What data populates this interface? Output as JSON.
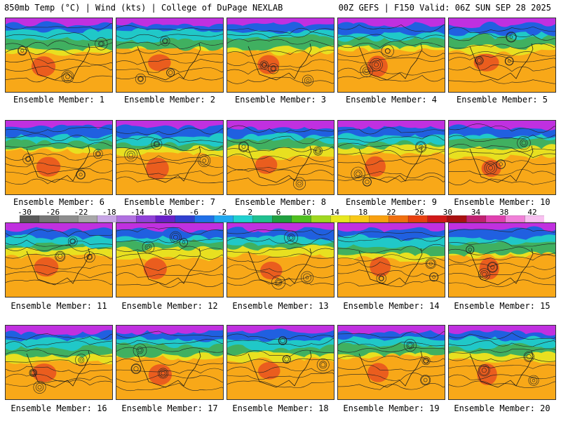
{
  "header": {
    "left": "850mb Temp (°C) | Wind (kts) | College of DuPage NEXLAB",
    "right": "00Z GEFS | F150 Valid: 06Z SUN SEP 28 2025"
  },
  "panels": [
    {
      "label": "Ensemble Member: 1"
    },
    {
      "label": "Ensemble Member: 2"
    },
    {
      "label": "Ensemble Member: 3"
    },
    {
      "label": "Ensemble Member: 4"
    },
    {
      "label": "Ensemble Member: 5"
    },
    {
      "label": "Ensemble Member: 6"
    },
    {
      "label": "Ensemble Member: 7"
    },
    {
      "label": "Ensemble Member: 8"
    },
    {
      "label": "Ensemble Member: 9"
    },
    {
      "label": "Ensemble Member: 10"
    },
    {
      "label": "Ensemble Member: 11"
    },
    {
      "label": "Ensemble Member: 12"
    },
    {
      "label": "Ensemble Member: 13"
    },
    {
      "label": "Ensemble Member: 14"
    },
    {
      "label": "Ensemble Member: 15"
    },
    {
      "label": "Ensemble Member: 16"
    },
    {
      "label": "Ensemble Member: 17"
    },
    {
      "label": "Ensemble Member: 18"
    },
    {
      "label": "Ensemble Member: 19"
    },
    {
      "label": "Ensemble Member: 20"
    }
  ],
  "colorbar": {
    "ticks": [
      "-30",
      "-26",
      "-22",
      "-18",
      "-14",
      "-10",
      "-6",
      "-2",
      "2",
      "6",
      "10",
      "14",
      "18",
      "22",
      "26",
      "30",
      "34",
      "38",
      "42"
    ],
    "colors": [
      "#5a5a5a",
      "#767676",
      "#8e8e8e",
      "#a8a8a8",
      "#c8a6e6",
      "#b070e0",
      "#9040d8",
      "#6a20c8",
      "#3040d0",
      "#2070e8",
      "#20a8f0",
      "#20d0d0",
      "#20c090",
      "#20a040",
      "#50c020",
      "#a0d820",
      "#e8e820",
      "#f8c818",
      "#f8a010",
      "#f07010",
      "#e84010",
      "#d01818",
      "#a81010",
      "#c02070",
      "#e040b0",
      "#f080d8",
      "#f8c0f0"
    ]
  },
  "map_colors": {
    "polar": "#c030e0",
    "cold": "#2060e0",
    "cool": "#20c8c8",
    "mild": "#40b060",
    "warm": "#e8e020",
    "hot": "#f8a818",
    "veryhot": "#e85020"
  }
}
